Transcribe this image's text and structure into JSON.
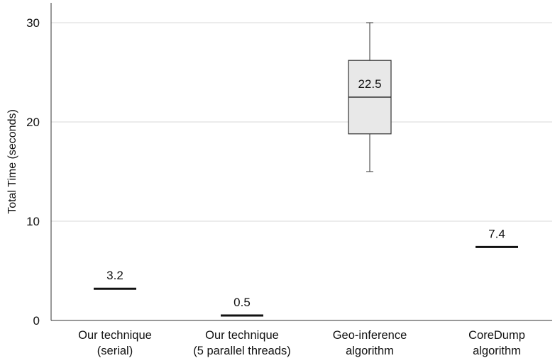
{
  "chart_data": {
    "type": "box",
    "ylabel": "Total Time (seconds)",
    "ylim": [
      0,
      32
    ],
    "yticks": [
      0,
      10,
      20,
      30
    ],
    "grid": true,
    "categories": [
      [
        "Our technique",
        "(serial)"
      ],
      [
        "Our technique",
        "(5 parallel threads)"
      ],
      [
        "Geo-inference",
        "algorithm"
      ],
      [
        "CoreDump",
        "algorithm"
      ]
    ],
    "points": [
      {
        "category": 0,
        "kind": "line",
        "value": 3.2,
        "label": "3.2"
      },
      {
        "category": 1,
        "kind": "line",
        "value": 0.5,
        "label": "0.5"
      },
      {
        "category": 2,
        "kind": "box",
        "min": 15,
        "q1": 18.8,
        "median": 22.5,
        "q3": 26.2,
        "max": 30,
        "label": "22.5"
      },
      {
        "category": 3,
        "kind": "line",
        "value": 7.4,
        "label": "7.4"
      }
    ]
  }
}
